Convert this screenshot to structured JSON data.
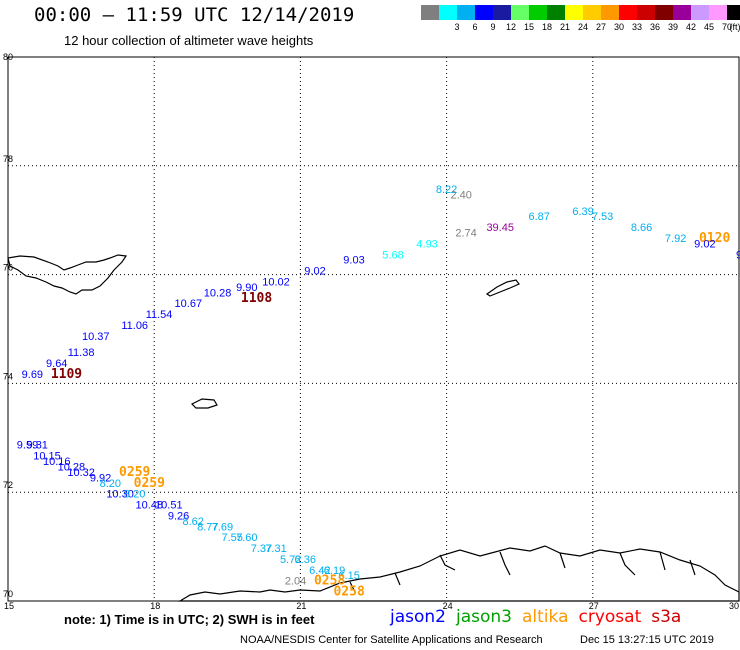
{
  "header": {
    "title": "00:00 – 11:59 UTC 12/14/2019",
    "subtitle": "12 hour collection of altimeter wave heights"
  },
  "color_scale": {
    "unit": "(ft)",
    "bins": [
      {
        "label": "",
        "color": "#7f7f7f"
      },
      {
        "label": "3",
        "color": "#00ffff"
      },
      {
        "label": "6",
        "color": "#00b0f0"
      },
      {
        "label": "9",
        "color": "#0000ff"
      },
      {
        "label": "12",
        "color": "#1a1aa0"
      },
      {
        "label": "15",
        "color": "#66ff66"
      },
      {
        "label": "18",
        "color": "#00cc00"
      },
      {
        "label": "21",
        "color": "#008000"
      },
      {
        "label": "24",
        "color": "#ffff00"
      },
      {
        "label": "27",
        "color": "#ffcc00"
      },
      {
        "label": "30",
        "color": "#ff9900"
      },
      {
        "label": "33",
        "color": "#ff0000"
      },
      {
        "label": "36",
        "color": "#cc0000"
      },
      {
        "label": "39",
        "color": "#800000"
      },
      {
        "label": "42",
        "color": "#990099"
      },
      {
        "label": "45",
        "color": "#cc99ff"
      },
      {
        "label": "70",
        "color": "#ff99ff"
      },
      {
        "label": "",
        "color": "#000000"
      }
    ]
  },
  "map": {
    "lat_labels": [
      "80",
      "78",
      "76",
      "74",
      "72",
      "70"
    ],
    "lon_labels": [
      "15",
      "18",
      "21",
      "24",
      "27",
      "30"
    ],
    "track_points": [
      {
        "label": "8.22",
        "lon": 24.0,
        "lat": 77.5,
        "color": "#00b0f0"
      },
      {
        "label": "2.40",
        "lon": 24.3,
        "lat": 77.4,
        "color": "#7f7f7f"
      },
      {
        "label": "6.39",
        "lon": 26.8,
        "lat": 77.1,
        "color": "#00b0f0"
      },
      {
        "label": "6.87",
        "lon": 25.9,
        "lat": 77.0,
        "color": "#00b0f0"
      },
      {
        "label": "7.53",
        "lon": 27.2,
        "lat": 77.0,
        "color": "#00b0f0"
      },
      {
        "label": "8.66",
        "lon": 28.0,
        "lat": 76.8,
        "color": "#00b0f0"
      },
      {
        "label": "39.45",
        "lon": 25.1,
        "lat": 76.8,
        "color": "#990099"
      },
      {
        "label": "2.74",
        "lon": 24.4,
        "lat": 76.7,
        "color": "#7f7f7f"
      },
      {
        "label": "7.92",
        "lon": 28.7,
        "lat": 76.6,
        "color": "#00b0f0"
      },
      {
        "label": "0120",
        "lon": 29.5,
        "lat": 76.6,
        "color": "#ff9900",
        "time": true
      },
      {
        "label": "9.02",
        "lon": 29.3,
        "lat": 76.5,
        "color": "#0000ff"
      },
      {
        "label": "4.93",
        "lon": 23.6,
        "lat": 76.5,
        "color": "#00ffff"
      },
      {
        "label": "5.68",
        "lon": 22.9,
        "lat": 76.3,
        "color": "#00ffff"
      },
      {
        "label": "9",
        "lon": 30.0,
        "lat": 76.3,
        "color": "#0000ff"
      },
      {
        "label": "9.03",
        "lon": 22.1,
        "lat": 76.2,
        "color": "#0000ff"
      },
      {
        "label": "9.02",
        "lon": 21.3,
        "lat": 76.0,
        "color": "#0000ff"
      },
      {
        "label": "10.02",
        "lon": 20.5,
        "lat": 75.8,
        "color": "#0000ff"
      },
      {
        "label": "9.90",
        "lon": 19.9,
        "lat": 75.7,
        "color": "#0000ff"
      },
      {
        "label": "1108",
        "lon": 20.1,
        "lat": 75.5,
        "color": "#800000",
        "time": true
      },
      {
        "label": "10.28",
        "lon": 19.3,
        "lat": 75.6,
        "color": "#0000ff"
      },
      {
        "label": "10.67",
        "lon": 18.7,
        "lat": 75.4,
        "color": "#0000ff"
      },
      {
        "label": "11.54",
        "lon": 18.1,
        "lat": 75.2,
        "color": "#0000ff"
      },
      {
        "label": "11.06",
        "lon": 17.6,
        "lat": 75.0,
        "color": "#0000ff"
      },
      {
        "label": "10.37",
        "lon": 16.8,
        "lat": 74.8,
        "color": "#0000ff"
      },
      {
        "label": "11.38",
        "lon": 16.5,
        "lat": 74.5,
        "color": "#0000ff"
      },
      {
        "label": "9.64",
        "lon": 16.0,
        "lat": 74.3,
        "color": "#0000ff"
      },
      {
        "label": "9.69",
        "lon": 15.5,
        "lat": 74.1,
        "color": "#0000ff"
      },
      {
        "label": "1109",
        "lon": 16.2,
        "lat": 74.1,
        "color": "#800000",
        "time": true
      },
      {
        "label": "9.59",
        "lon": 15.4,
        "lat": 72.8,
        "color": "#0000ff"
      },
      {
        "label": "9.31",
        "lon": 15.6,
        "lat": 72.8,
        "color": "#0000ff"
      },
      {
        "label": "10.15",
        "lon": 15.8,
        "lat": 72.6,
        "color": "#0000ff"
      },
      {
        "label": "10.16",
        "lon": 16.0,
        "lat": 72.5,
        "color": "#0000ff"
      },
      {
        "label": "10.28",
        "lon": 16.3,
        "lat": 72.4,
        "color": "#0000ff"
      },
      {
        "label": "10.32",
        "lon": 16.5,
        "lat": 72.3,
        "color": "#0000ff"
      },
      {
        "label": "9.92",
        "lon": 16.9,
        "lat": 72.2,
        "color": "#0000ff"
      },
      {
        "label": "8.20",
        "lon": 17.1,
        "lat": 72.1,
        "color": "#00b0f0"
      },
      {
        "label": "0259",
        "lon": 17.6,
        "lat": 72.3,
        "color": "#ff9900",
        "time": true
      },
      {
        "label": "0259",
        "lon": 17.9,
        "lat": 72.1,
        "color": "#ff9900",
        "time": true
      },
      {
        "label": "10.30",
        "lon": 17.3,
        "lat": 71.9,
        "color": "#0000ff"
      },
      {
        "label": "8.20",
        "lon": 17.6,
        "lat": 71.9,
        "color": "#00b0f0"
      },
      {
        "label": "10.48",
        "lon": 17.9,
        "lat": 71.7,
        "color": "#0000ff"
      },
      {
        "label": "10.51",
        "lon": 18.3,
        "lat": 71.7,
        "color": "#0000ff"
      },
      {
        "label": "9.26",
        "lon": 18.5,
        "lat": 71.5,
        "color": "#0000ff"
      },
      {
        "label": "8.62",
        "lon": 18.8,
        "lat": 71.4,
        "color": "#00b0f0"
      },
      {
        "label": "8.77",
        "lon": 19.1,
        "lat": 71.3,
        "color": "#00b0f0"
      },
      {
        "label": "7.69",
        "lon": 19.4,
        "lat": 71.3,
        "color": "#00b0f0"
      },
      {
        "label": "7.55",
        "lon": 19.6,
        "lat": 71.1,
        "color": "#00b0f0"
      },
      {
        "label": "7.60",
        "lon": 19.9,
        "lat": 71.1,
        "color": "#00b0f0"
      },
      {
        "label": "7.37",
        "lon": 20.2,
        "lat": 70.9,
        "color": "#00b0f0"
      },
      {
        "label": "7.31",
        "lon": 20.5,
        "lat": 70.9,
        "color": "#00b0f0"
      },
      {
        "label": "5.72",
        "lon": 20.8,
        "lat": 70.7,
        "color": "#00b0f0"
      },
      {
        "label": "6.36",
        "lon": 21.1,
        "lat": 70.7,
        "color": "#00b0f0"
      },
      {
        "label": "6.42",
        "lon": 21.4,
        "lat": 70.5,
        "color": "#00b0f0"
      },
      {
        "label": "6.19",
        "lon": 21.7,
        "lat": 70.5,
        "color": "#00b0f0"
      },
      {
        "label": "6.15",
        "lon": 22.0,
        "lat": 70.4,
        "color": "#00b0f0"
      },
      {
        "label": "2.04",
        "lon": 20.9,
        "lat": 70.3,
        "color": "#7f7f7f"
      },
      {
        "label": "0258",
        "lon": 21.6,
        "lat": 70.3,
        "color": "#ff9900",
        "time": true
      },
      {
        "label": "0258",
        "lon": 22.0,
        "lat": 70.1,
        "color": "#ff9900",
        "time": true
      }
    ]
  },
  "footer": {
    "note": "note: 1) Time is in UTC; 2) SWH is in feet",
    "satellites": [
      {
        "name": "jason2",
        "color": "#0000ff"
      },
      {
        "name": "jason3",
        "color": "#00a000"
      },
      {
        "name": "altika",
        "color": "#ff9900"
      },
      {
        "name": "cryosat",
        "color": "#ff0000"
      },
      {
        "name": "s3a",
        "color": "#cc0000"
      }
    ],
    "credit": "NOAA/NESDIS Center for Satellite Applications and Research",
    "timestamp": "Dec 15 13:27:15 UTC 2019"
  }
}
